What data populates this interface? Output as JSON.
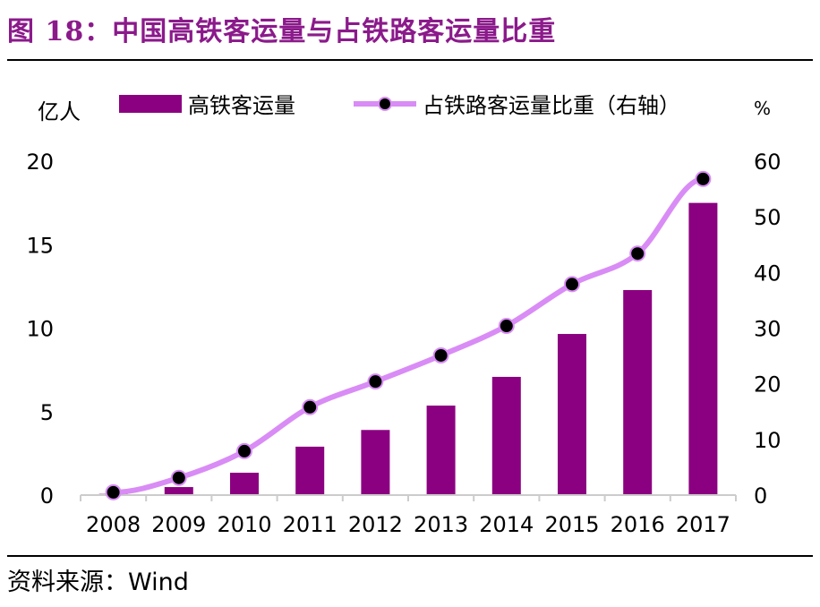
{
  "title": "图 18：中国高铁客运量与占铁路客运量比重",
  "source": "资料来源：Wind",
  "chart_data": {
    "type": "bar+line",
    "categories": [
      "2008",
      "2009",
      "2010",
      "2011",
      "2012",
      "2013",
      "2014",
      "2015",
      "2016",
      "2017"
    ],
    "y_left": {
      "label": "亿人",
      "range": [
        0,
        20
      ],
      "ticks": [
        0,
        5,
        10,
        15,
        20
      ]
    },
    "y_right": {
      "label": "%",
      "range": [
        0,
        60
      ],
      "ticks": [
        0,
        10,
        20,
        30,
        40,
        50,
        60
      ]
    },
    "series": [
      {
        "name": "高铁客运量",
        "type": "bar",
        "axis": "left",
        "color": "#8b0080",
        "values": [
          0.07,
          0.48,
          1.34,
          2.9,
          3.9,
          5.36,
          7.08,
          9.65,
          12.28,
          17.5
        ]
      },
      {
        "name": "占铁路客运量比重（右轴）",
        "type": "line",
        "axis": "right",
        "color": "#d98cf5",
        "marker_color": "#000000",
        "values": [
          0.5,
          3.1,
          7.9,
          15.8,
          20.4,
          25.1,
          30.4,
          37.9,
          43.4,
          56.8
        ]
      }
    ],
    "legend": "top",
    "grid": false
  }
}
